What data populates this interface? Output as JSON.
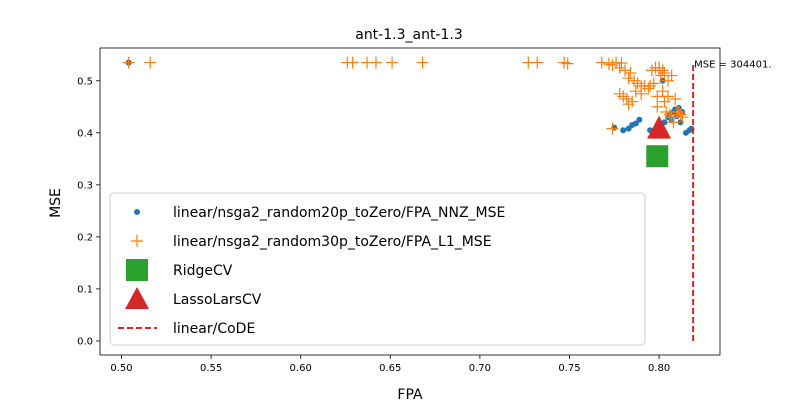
{
  "chart_data": {
    "type": "scatter",
    "title": "ant-1.3_ant-1.3",
    "xlabel": "FPA",
    "ylabel": "MSE",
    "xlim": [
      0.488,
      0.834
    ],
    "ylim": [
      -0.027,
      0.563
    ],
    "xticks": [
      "0.50",
      "0.55",
      "0.60",
      "0.65",
      "0.70",
      "0.75",
      "0.80"
    ],
    "xtick_values": [
      0.5,
      0.55,
      0.6,
      0.65,
      0.7,
      0.75,
      0.8
    ],
    "yticks": [
      "0.0",
      "0.1",
      "0.2",
      "0.3",
      "0.4",
      "0.5"
    ],
    "ytick_values": [
      0.0,
      0.1,
      0.2,
      0.3,
      0.4,
      0.5
    ],
    "grid": false,
    "legend_position": "lower-left",
    "annotation": "MSE = 304401.",
    "series": [
      {
        "name": "linear/nsga2_random20p_toZero/FPA_NNZ_MSE",
        "marker": "dot",
        "color": "#1f77b4",
        "x": [
          0.504,
          0.775,
          0.78,
          0.783,
          0.785,
          0.787,
          0.789,
          0.795,
          0.797,
          0.8,
          0.802,
          0.803,
          0.805,
          0.806,
          0.808,
          0.809,
          0.811,
          0.813,
          0.815,
          0.817,
          0.801,
          0.807,
          0.812,
          0.81,
          0.818
        ],
        "y": [
          0.535,
          0.41,
          0.405,
          0.408,
          0.415,
          0.418,
          0.425,
          0.405,
          0.4,
          0.41,
          0.5,
          0.42,
          0.43,
          0.435,
          0.44,
          0.445,
          0.448,
          0.44,
          0.4,
          0.405,
          0.395,
          0.425,
          0.42,
          0.432,
          0.408
        ]
      },
      {
        "name": "linear/nsga2_random30p_toZero/FPA_L1_MSE",
        "marker": "plus",
        "color": "#ff7f0e",
        "x": [
          0.504,
          0.516,
          0.626,
          0.629,
          0.637,
          0.642,
          0.651,
          0.668,
          0.727,
          0.732,
          0.747,
          0.749,
          0.768,
          0.772,
          0.774,
          0.776,
          0.778,
          0.779,
          0.781,
          0.783,
          0.784,
          0.786,
          0.788,
          0.79,
          0.792,
          0.794,
          0.796,
          0.798,
          0.799,
          0.8,
          0.801,
          0.802,
          0.803,
          0.804,
          0.805,
          0.806,
          0.807,
          0.808,
          0.81,
          0.812,
          0.774,
          0.778,
          0.78,
          0.782,
          0.783,
          0.785,
          0.787,
          0.79,
          0.795,
          0.797,
          0.799,
          0.8,
          0.802,
          0.803,
          0.805,
          0.807,
          0.809,
          0.811,
          0.813
        ],
        "y": [
          0.535,
          0.535,
          0.535,
          0.535,
          0.535,
          0.535,
          0.535,
          0.535,
          0.535,
          0.535,
          0.535,
          0.533,
          0.535,
          0.532,
          0.53,
          0.535,
          0.525,
          0.534,
          0.52,
          0.505,
          0.515,
          0.5,
          0.495,
          0.49,
          0.49,
          0.485,
          0.52,
          0.525,
          0.47,
          0.52,
          0.51,
          0.48,
          0.46,
          0.44,
          0.47,
          0.435,
          0.43,
          0.42,
          0.44,
          0.435,
          0.408,
          0.475,
          0.47,
          0.465,
          0.455,
          0.46,
          0.48,
          0.475,
          0.49,
          0.495,
          0.45,
          0.525,
          0.52,
          0.515,
          0.5,
          0.51,
          0.465,
          0.44,
          0.43
        ]
      },
      {
        "name": "RidgeCV",
        "marker": "square",
        "color": "#2ca02c",
        "x": [
          0.799
        ],
        "y": [
          0.355
        ]
      },
      {
        "name": "LassoLarsCV",
        "marker": "triangle",
        "color": "#d62728",
        "x": [
          0.8
        ],
        "y": [
          0.408
        ]
      },
      {
        "name": "linear/CoDE",
        "marker": "dashed-line",
        "color": "#d62728",
        "x": [
          0.819,
          0.819
        ],
        "y": [
          0.0,
          0.535
        ]
      }
    ]
  }
}
